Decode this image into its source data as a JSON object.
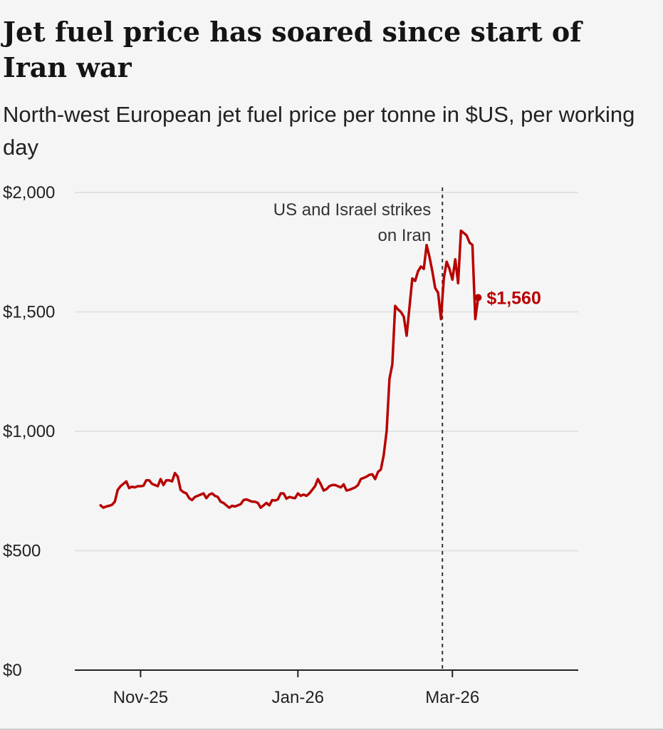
{
  "chart_data": {
    "type": "line",
    "title": "Jet fuel price has soared since start of Iran war",
    "subtitle": "North-west European jet fuel price per tonne in $US, per working day",
    "ylim": [
      0,
      2000
    ],
    "y_ticks": [
      {
        "value": 0,
        "label": "$0"
      },
      {
        "value": 500,
        "label": "$500"
      },
      {
        "value": 1000,
        "label": "$1,000"
      },
      {
        "value": 1500,
        "label": "$1,500"
      },
      {
        "value": 2000,
        "label": "$2,000"
      }
    ],
    "x_ticks": [
      "Nov-25",
      "Jan-26",
      "Mar-26"
    ],
    "xlim_index": [
      -9,
      167
    ],
    "x_tick_positions": [
      14,
      69,
      123
    ],
    "annotation": {
      "index": 121,
      "text_lines": [
        "US and Israel strikes",
        "on Iran"
      ]
    },
    "last_value_label": "$1,560",
    "series": [
      {
        "name": "Jet fuel price",
        "color": "#b80000",
        "values": [
          690,
          680,
          685,
          688,
          692,
          705,
          755,
          770,
          780,
          790,
          762,
          768,
          765,
          770,
          770,
          772,
          795,
          795,
          780,
          775,
          770,
          800,
          775,
          795,
          795,
          790,
          825,
          810,
          755,
          745,
          740,
          720,
          712,
          725,
          730,
          735,
          740,
          720,
          735,
          740,
          730,
          725,
          705,
          700,
          690,
          680,
          688,
          685,
          690,
          695,
          712,
          715,
          710,
          705,
          705,
          700,
          680,
          690,
          700,
          690,
          712,
          710,
          715,
          740,
          740,
          718,
          725,
          722,
          720,
          740,
          730,
          735,
          730,
          740,
          755,
          770,
          800,
          778,
          752,
          758,
          770,
          775,
          775,
          770,
          765,
          778,
          752,
          755,
          760,
          765,
          775,
          800,
          805,
          810,
          818,
          820,
          800,
          830,
          840,
          900,
          1000,
          1220,
          1280,
          1525,
          1510,
          1500,
          1480,
          1400,
          1520,
          1640,
          1630,
          1670,
          1690,
          1680,
          1780,
          1730,
          1670,
          1600,
          1580,
          1470,
          1640,
          1710,
          1680,
          1635,
          1720,
          1620,
          1840,
          1830,
          1820,
          1790,
          1780,
          1470,
          1560
        ]
      }
    ]
  }
}
